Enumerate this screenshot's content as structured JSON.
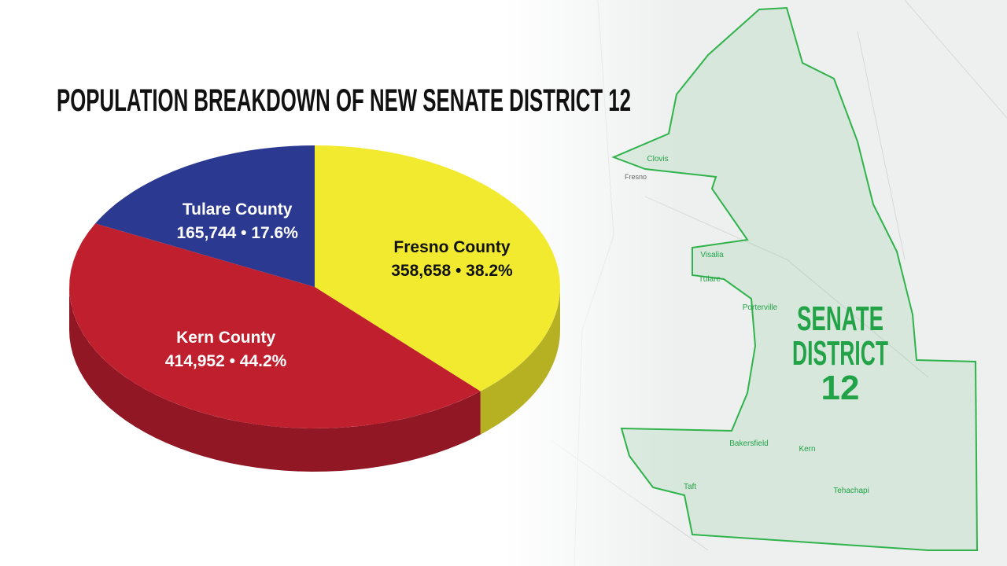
{
  "chart_data": {
    "type": "pie",
    "title": "POPULATION BREAKDOWN OF NEW SENATE DISTRICT 12",
    "categories": [
      "Fresno County",
      "Kern County",
      "Tulare County"
    ],
    "values": [
      38.2,
      44.2,
      17.6
    ],
    "value_labels": [
      "358,658 • 38.2%",
      "414,952 • 44.2%",
      "165,744 • 17.6%"
    ],
    "colors": [
      "#f2ea2e",
      "#c01f2e",
      "#2b3990"
    ]
  },
  "map": {
    "title": [
      "SENATE",
      "DISTRICT",
      "12"
    ],
    "places": [
      "Clovis",
      "Fresno",
      "Visalia",
      "Tulare",
      "Porterville",
      "Bakersfield",
      "Kern",
      "Taft",
      "Tehachapi"
    ]
  }
}
